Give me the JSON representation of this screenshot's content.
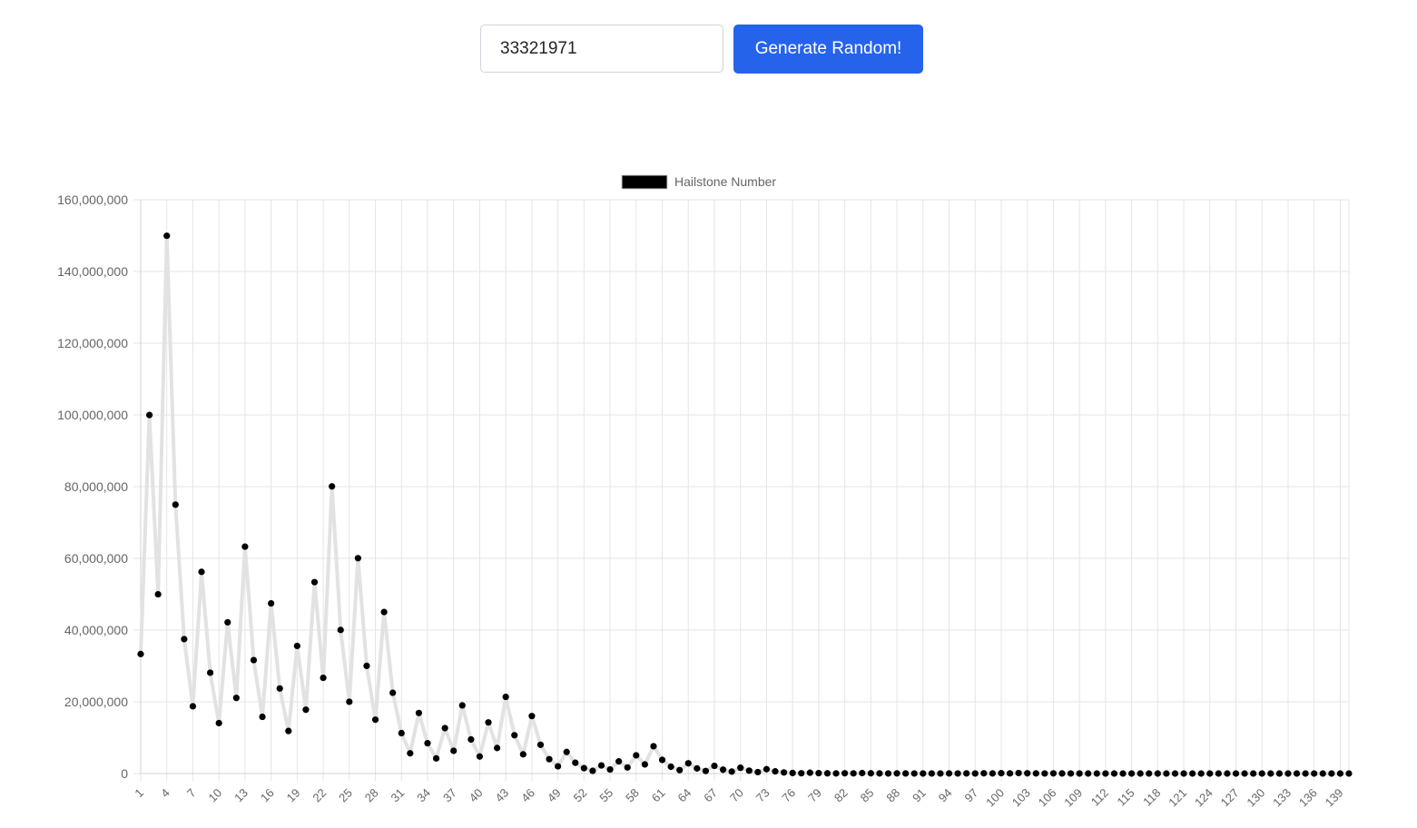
{
  "controls": {
    "number_value": "33321971",
    "generate_label": "Generate Random!"
  },
  "colors": {
    "button": "#2563eb",
    "line": "#e2e2e2",
    "point": "#000000",
    "grid": "#e5e5e5"
  },
  "chart_data": {
    "type": "line",
    "legend": {
      "position": "top",
      "label": "Hailstone Number"
    },
    "grid": true,
    "ylim": [
      0,
      160000000
    ],
    "y_ticks": [
      "0",
      "20,000,000",
      "40,000,000",
      "60,000,000",
      "80,000,000",
      "100,000,000",
      "120,000,000",
      "140,000,000",
      "160,000,000"
    ],
    "x_tick_every": 3,
    "series": [
      {
        "name": "Hailstone Number",
        "start_value": 33321971
      }
    ]
  }
}
